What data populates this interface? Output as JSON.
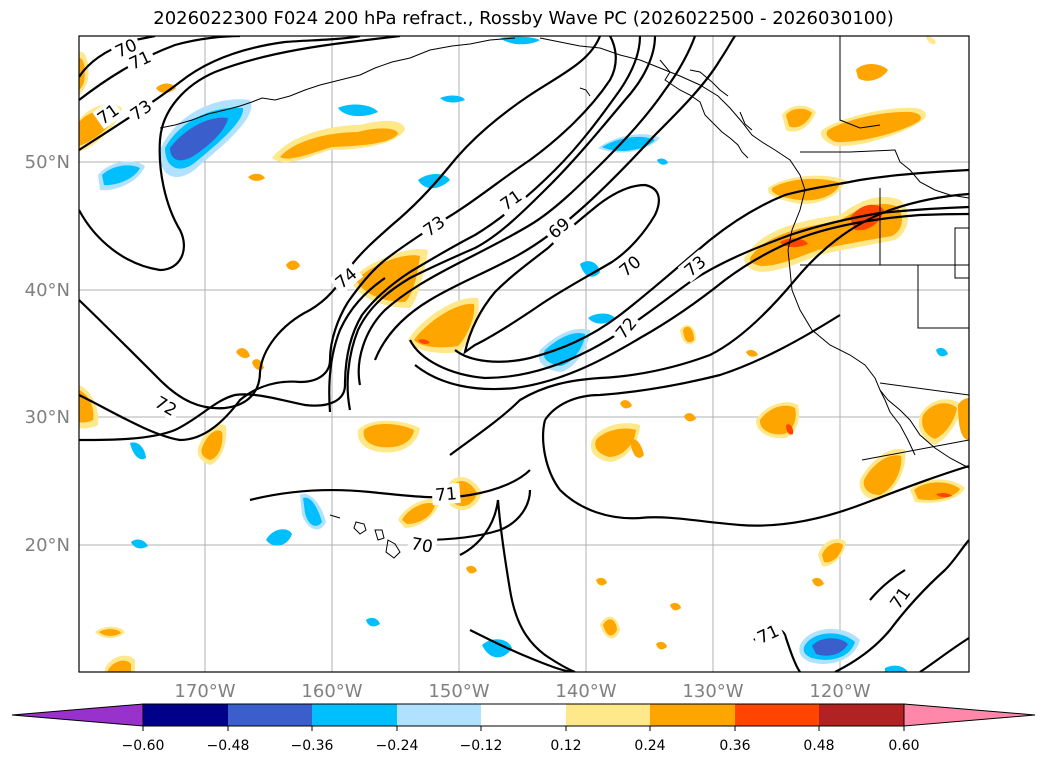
{
  "title": "2026022300 F024 200 hPa refract., Rossby Wave PC (2026022500 - 2026030100)",
  "lat_labels": [
    "50°N",
    "40°N",
    "30°N",
    "20°N"
  ],
  "lon_labels": [
    "170°W",
    "160°W",
    "150°W",
    "140°W",
    "130°W",
    "120°W"
  ],
  "colorbar": {
    "ticks": [
      "−0.60",
      "−0.48",
      "−0.36",
      "−0.24",
      "−0.12",
      "0.12",
      "0.24",
      "0.36",
      "0.48",
      "0.60"
    ],
    "colors": {
      "under": "#9932cc",
      "bins": [
        "#00008b",
        "#3a5fcd",
        "#00bfff",
        "#b0e2ff",
        "#ffffff",
        "#ffe88a",
        "#ffa500",
        "#ff4500",
        "#b22222"
      ],
      "over": "#ff88aa"
    }
  },
  "contour_labels": [
    "70",
    "71",
    "73",
    "71",
    "73",
    "74",
    "71",
    "69",
    "70",
    "73",
    "72",
    "72",
    "71",
    "70",
    "71",
    "71"
  ],
  "colors": {
    "contour": "#000000",
    "grid": "#b0b0b0",
    "coast": "#000000"
  }
}
